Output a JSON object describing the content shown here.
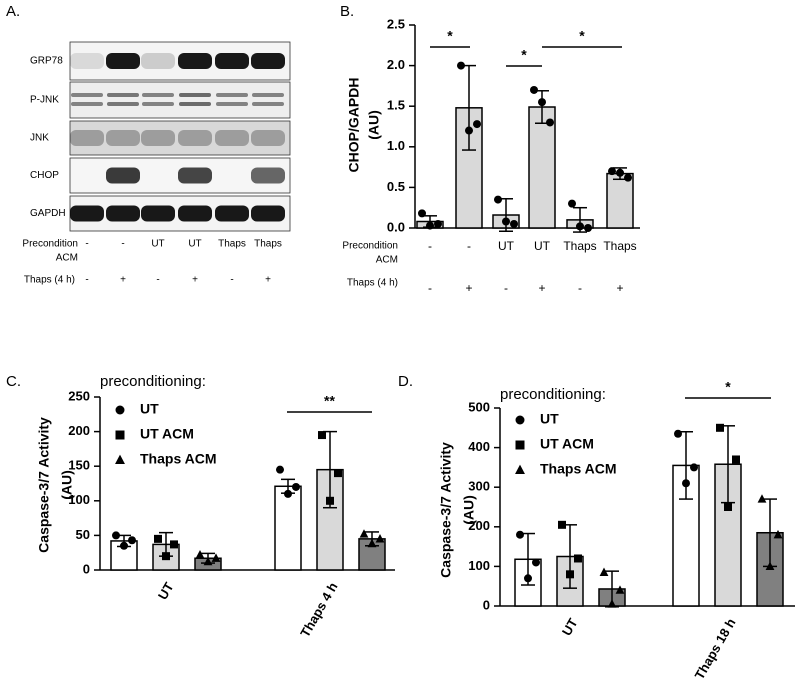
{
  "blot": {
    "panel_label": "A.",
    "rows": [
      "GRP78",
      "P-JNK",
      "JNK",
      "CHOP",
      "GAPDH"
    ],
    "precondition_label": [
      "Precondition",
      "ACM"
    ],
    "precondition": [
      "-",
      "-",
      "UT",
      "UT",
      "Thaps",
      "Thaps"
    ],
    "thaps_label": "Thaps (4 h)",
    "thaps": [
      "-",
      "+",
      "-",
      "+",
      "-",
      "+"
    ]
  },
  "chart_data": [
    {
      "type": "bar",
      "panel_label": "B.",
      "ylabel": [
        "CHOP/GAPDH",
        "(AU)"
      ],
      "categories": [
        "-",
        "-",
        "UT",
        "UT",
        "Thaps",
        "Thaps"
      ],
      "categories2": [
        "-",
        "+",
        "-",
        "+",
        "-",
        "+"
      ],
      "row_labels": [
        [
          "Precondition",
          "ACM"
        ],
        "Thaps (4 h)"
      ],
      "series": [
        {
          "color": "#d9d9d9",
          "marker": "circle",
          "values": [
            0.08,
            1.48,
            0.16,
            1.49,
            0.1,
            0.67
          ],
          "errors": [
            0.07,
            0.52,
            0.2,
            0.2,
            0.15,
            0.07
          ],
          "points": [
            [
              0.18,
              0.03,
              0.05
            ],
            [
              2.0,
              1.2,
              1.28
            ],
            [
              0.35,
              0.08,
              0.05
            ],
            [
              1.7,
              1.55,
              1.3
            ],
            [
              0.3,
              0.02,
              0.0
            ],
            [
              0.7,
              0.68,
              0.62
            ]
          ]
        }
      ],
      "ylim": [
        0,
        2.5
      ],
      "yticks": [
        {
          "value": 0,
          "label": "0.0"
        },
        {
          "value": 0.5,
          "label": "0.5"
        },
        {
          "value": 1,
          "label": "1.0"
        },
        {
          "value": 1.5,
          "label": "1.5"
        },
        {
          "value": 2,
          "label": "2.0"
        },
        {
          "value": 2.5,
          "label": "2.5"
        }
      ],
      "annotations": [
        "*",
        "*",
        "*"
      ]
    },
    {
      "type": "grouped_bar",
      "panel_label": "C.",
      "ylabel": [
        "Caspase-3/7 Activity",
        "(AU)"
      ],
      "legend_title": "preconditioning:",
      "categories": [
        "UT",
        "Thaps 4 h"
      ],
      "series": [
        {
          "name": "UT",
          "color": "#ffffff",
          "marker": "circle",
          "values": [
            42,
            121
          ],
          "errors": [
            8,
            10
          ],
          "points": [
            [
              50,
              35,
              43
            ],
            [
              145,
              110,
              120
            ]
          ]
        },
        {
          "name": "UT ACM",
          "color": "#d9d9d9",
          "marker": "square",
          "values": [
            37,
            145
          ],
          "errors": [
            17,
            55
          ],
          "points": [
            [
              45,
              20,
              37
            ],
            [
              195,
              100,
              140
            ]
          ]
        },
        {
          "name": "Thaps ACM",
          "color": "#808080",
          "marker": "triangle",
          "values": [
            17,
            45
          ],
          "errors": [
            7,
            10
          ],
          "points": [
            [
              22,
              12,
              17
            ],
            [
              52,
              38,
              45
            ]
          ]
        }
      ],
      "ylim": [
        0,
        250
      ],
      "yticks": [
        0,
        50,
        100,
        150,
        200,
        250
      ],
      "annotations": [
        "**"
      ]
    },
    {
      "type": "grouped_bar",
      "panel_label": "D.",
      "ylabel": [
        "Caspase-3/7 Activity",
        "(AU)"
      ],
      "legend_title": "preconditioning:",
      "categories": [
        "UT",
        "Thaps 18 h"
      ],
      "series": [
        {
          "name": "UT",
          "color": "#ffffff",
          "marker": "circle",
          "values": [
            118,
            355
          ],
          "errors": [
            65,
            85
          ],
          "points": [
            [
              180,
              70,
              110
            ],
            [
              435,
              310,
              350
            ]
          ]
        },
        {
          "name": "UT ACM",
          "color": "#d9d9d9",
          "marker": "square",
          "values": [
            125,
            358
          ],
          "errors": [
            80,
            97
          ],
          "points": [
            [
              205,
              80,
              120
            ],
            [
              450,
              250,
              370
            ]
          ]
        },
        {
          "name": "Thaps ACM",
          "color": "#808080",
          "marker": "triangle",
          "values": [
            43,
            185
          ],
          "errors": [
            45,
            85
          ],
          "points": [
            [
              85,
              5,
              40
            ],
            [
              270,
              100,
              180
            ]
          ]
        }
      ],
      "ylim": [
        0,
        500
      ],
      "yticks": [
        0,
        100,
        200,
        300,
        400,
        500
      ],
      "annotations": [
        "*"
      ]
    }
  ]
}
